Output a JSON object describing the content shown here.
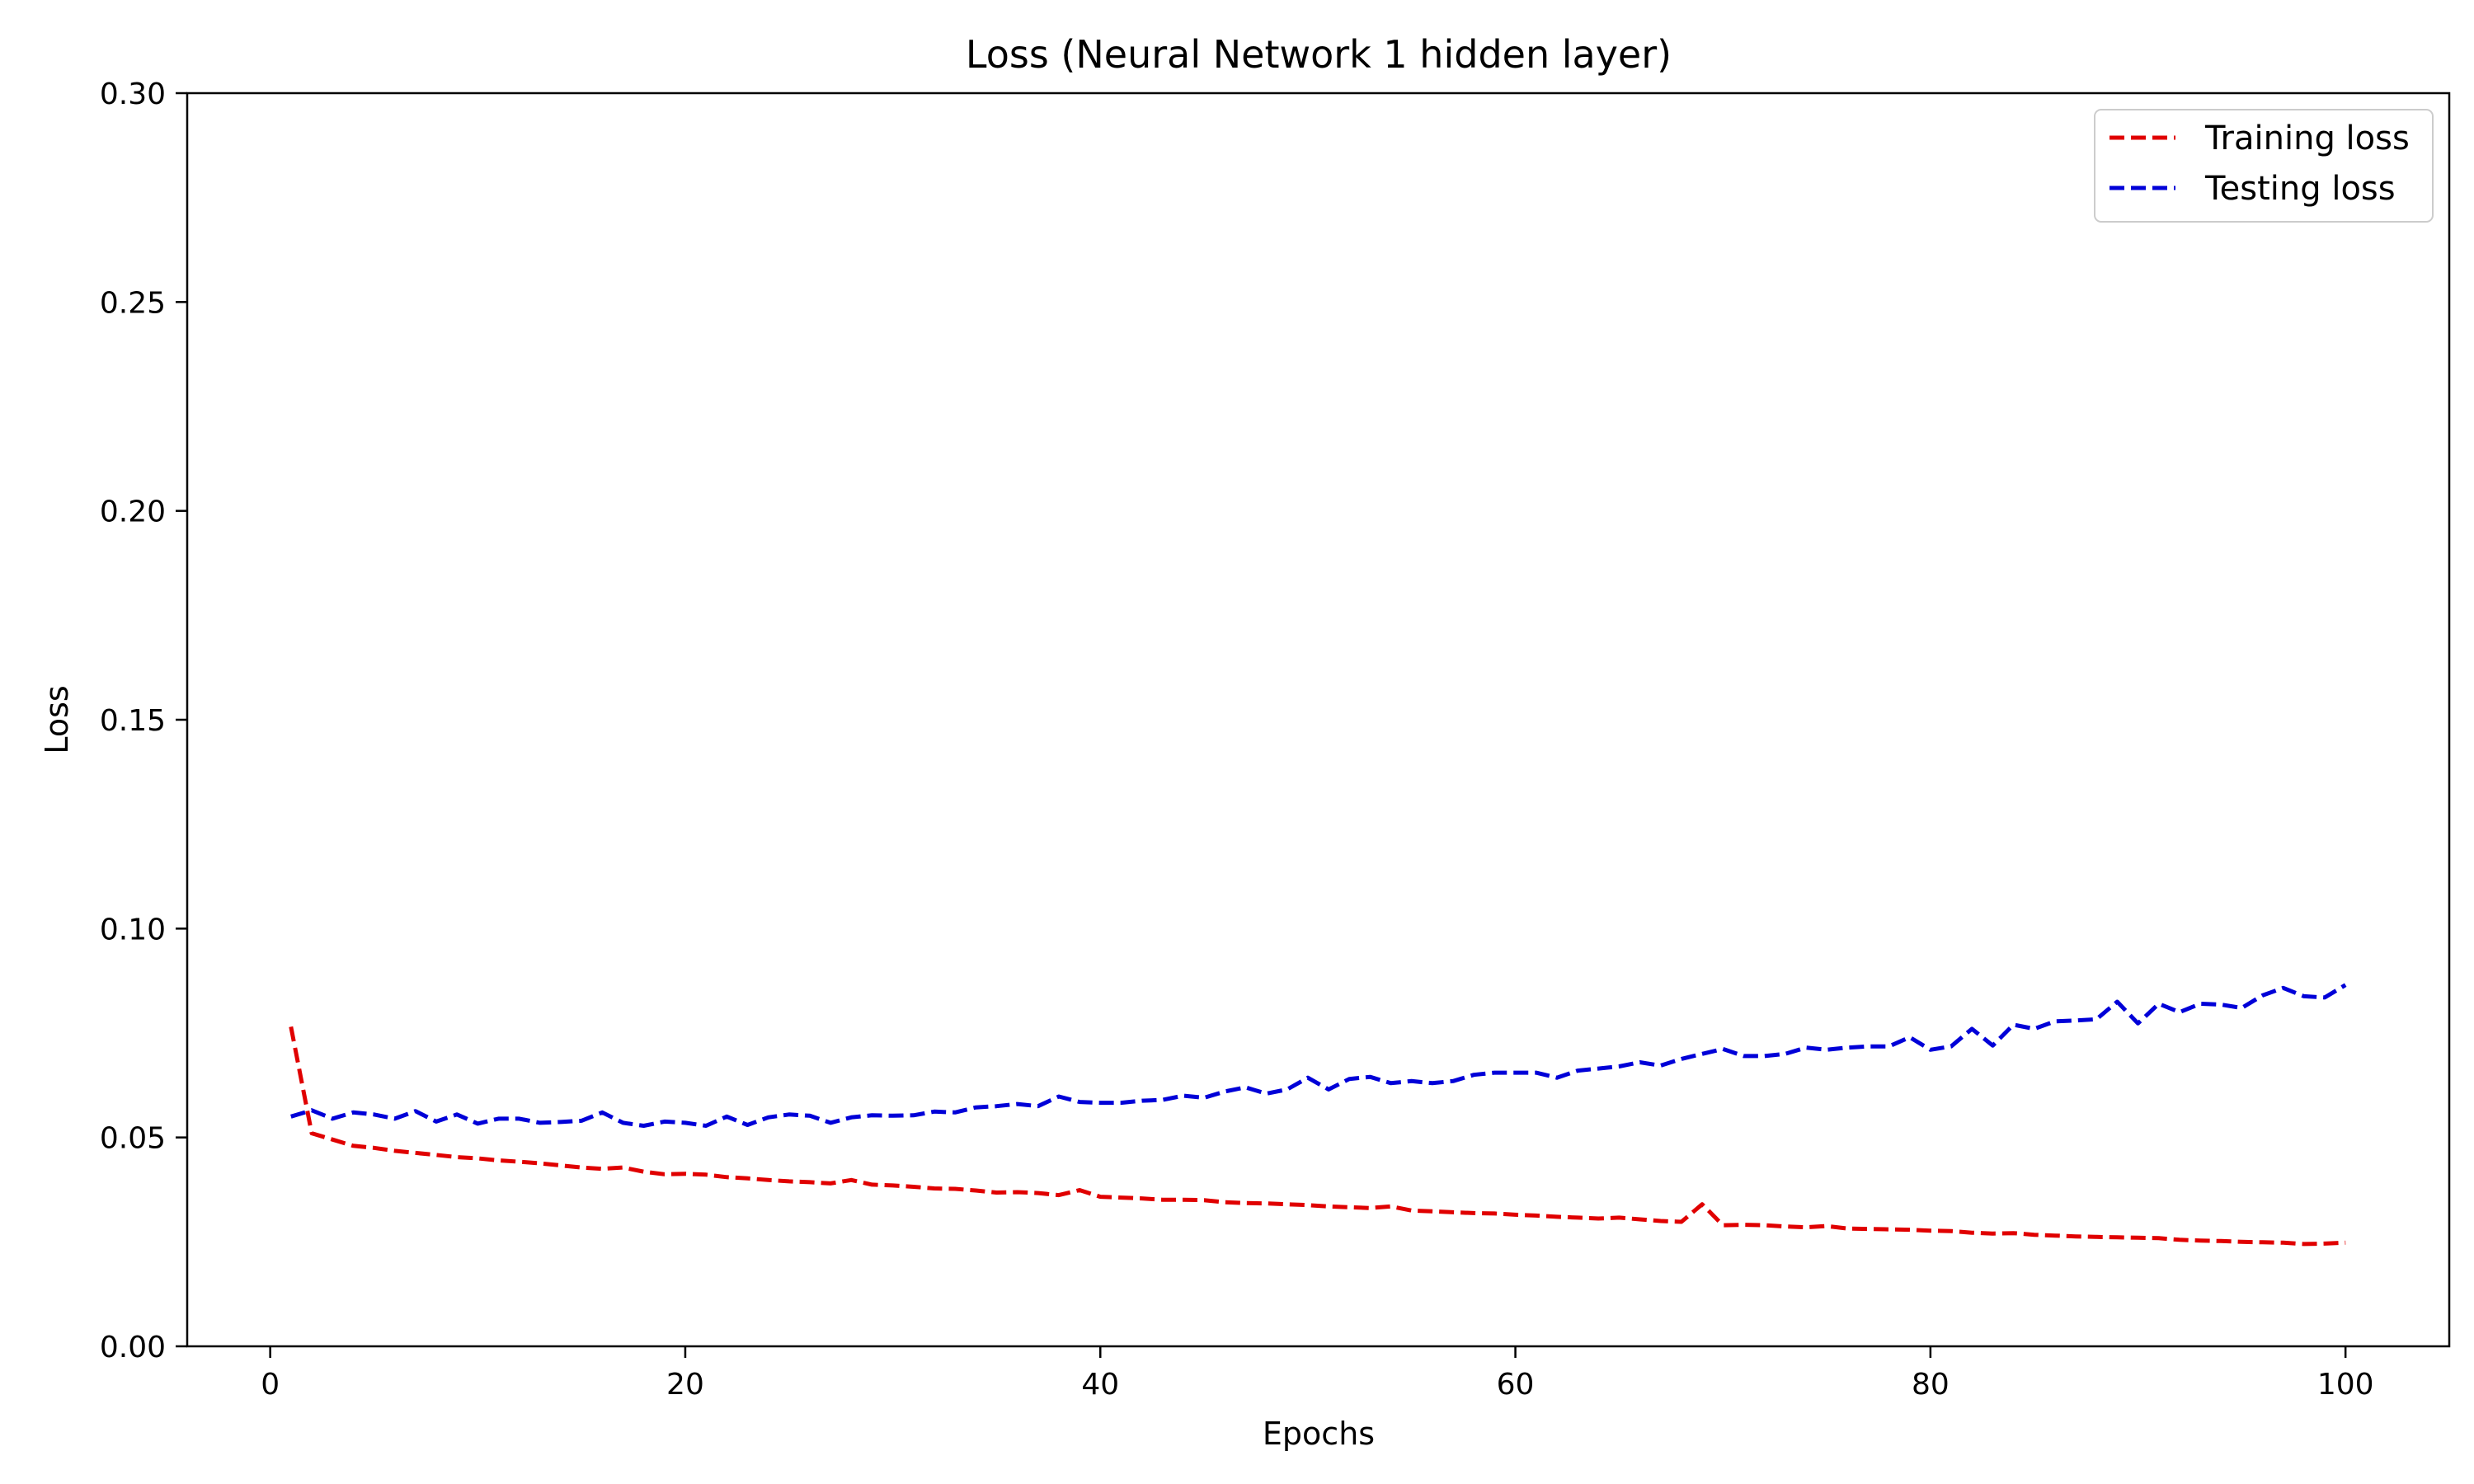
{
  "chart_data": {
    "type": "line",
    "title": "Loss (Neural Network 1 hidden layer)",
    "xlabel": "Epochs",
    "ylabel": "Loss",
    "xlim": [
      -4,
      105
    ],
    "ylim": [
      0,
      0.3
    ],
    "xticks": [
      0,
      20,
      40,
      60,
      80,
      100
    ],
    "yticks": [
      0.0,
      0.05,
      0.1,
      0.15,
      0.2,
      0.25,
      0.3
    ],
    "xtick_labels": [
      "0",
      "20",
      "40",
      "60",
      "80",
      "100"
    ],
    "ytick_labels": [
      "0.00",
      "0.05",
      "0.10",
      "0.15",
      "0.20",
      "0.25",
      "0.30"
    ],
    "grid": false,
    "legend_position": "top-right",
    "series": [
      {
        "name": "Training loss",
        "color": "#e00000",
        "dash": "dashed",
        "x": [
          1,
          2,
          3,
          4,
          5,
          6,
          7,
          8,
          9,
          10,
          11,
          12,
          13,
          14,
          15,
          16,
          17,
          18,
          19,
          20,
          21,
          22,
          23,
          24,
          25,
          26,
          27,
          28,
          29,
          30,
          31,
          32,
          33,
          34,
          35,
          36,
          37,
          38,
          39,
          40,
          41,
          42,
          43,
          44,
          45,
          46,
          47,
          48,
          49,
          50,
          51,
          52,
          53,
          54,
          55,
          56,
          57,
          58,
          59,
          60,
          61,
          62,
          63,
          64,
          65,
          66,
          67,
          68,
          69,
          70,
          71,
          72,
          73,
          74,
          75,
          76,
          77,
          78,
          79,
          80,
          81,
          82,
          83,
          84,
          85,
          86,
          87,
          88,
          89,
          90,
          91,
          92,
          93,
          94,
          95,
          96,
          97,
          98,
          99,
          100
        ],
        "values": [
          0.0765,
          0.051,
          0.0495,
          0.048,
          0.0475,
          0.0468,
          0.0463,
          0.0458,
          0.0453,
          0.045,
          0.0445,
          0.0442,
          0.0438,
          0.0433,
          0.0428,
          0.0425,
          0.0428,
          0.0418,
          0.0412,
          0.0413,
          0.0411,
          0.0405,
          0.0402,
          0.0398,
          0.0395,
          0.0393,
          0.039,
          0.0398,
          0.0387,
          0.0385,
          0.0382,
          0.0378,
          0.0377,
          0.0373,
          0.0368,
          0.0369,
          0.0367,
          0.0362,
          0.0374,
          0.0358,
          0.0356,
          0.0354,
          0.0351,
          0.0351,
          0.035,
          0.0345,
          0.0343,
          0.0342,
          0.034,
          0.0338,
          0.0335,
          0.0333,
          0.0331,
          0.0335,
          0.0325,
          0.0323,
          0.0321,
          0.0319,
          0.0318,
          0.0315,
          0.0313,
          0.031,
          0.0308,
          0.0306,
          0.0308,
          0.0304,
          0.03,
          0.0298,
          0.034,
          0.029,
          0.0291,
          0.029,
          0.0287,
          0.0285,
          0.0288,
          0.0282,
          0.0281,
          0.028,
          0.0279,
          0.0277,
          0.0276,
          0.0272,
          0.027,
          0.0271,
          0.0267,
          0.0265,
          0.0263,
          0.0262,
          0.0261,
          0.026,
          0.0259,
          0.0255,
          0.0253,
          0.0252,
          0.025,
          0.0249,
          0.0248,
          0.0245,
          0.0246,
          0.0248
        ]
      },
      {
        "name": "Testing loss",
        "color": "#0000d8",
        "dash": "dashed",
        "x": [
          1,
          2,
          3,
          4,
          5,
          6,
          7,
          8,
          9,
          10,
          11,
          12,
          13,
          14,
          15,
          16,
          17,
          18,
          19,
          20,
          21,
          22,
          23,
          24,
          25,
          26,
          27,
          28,
          29,
          30,
          31,
          32,
          33,
          34,
          35,
          36,
          37,
          38,
          39,
          40,
          41,
          42,
          43,
          44,
          45,
          46,
          47,
          48,
          49,
          50,
          51,
          52,
          53,
          54,
          55,
          56,
          57,
          58,
          59,
          60,
          61,
          62,
          63,
          64,
          65,
          66,
          67,
          68,
          69,
          70,
          71,
          72,
          73,
          74,
          75,
          76,
          77,
          78,
          79,
          80,
          81,
          82,
          83,
          84,
          85,
          86,
          87,
          88,
          89,
          90,
          91,
          92,
          93,
          94,
          95,
          96,
          97,
          98,
          99,
          100
        ],
        "values": [
          0.055,
          0.0565,
          0.0545,
          0.056,
          0.0555,
          0.0545,
          0.0563,
          0.0538,
          0.0555,
          0.0533,
          0.0545,
          0.0545,
          0.0535,
          0.0537,
          0.054,
          0.056,
          0.0535,
          0.0528,
          0.0538,
          0.0535,
          0.0528,
          0.055,
          0.053,
          0.0548,
          0.0555,
          0.0552,
          0.0535,
          0.0548,
          0.0553,
          0.0552,
          0.0553,
          0.0562,
          0.056,
          0.0572,
          0.0575,
          0.058,
          0.0575,
          0.0598,
          0.0585,
          0.0583,
          0.0583,
          0.0588,
          0.059,
          0.06,
          0.0595,
          0.061,
          0.062,
          0.0605,
          0.0615,
          0.0643,
          0.0615,
          0.064,
          0.0645,
          0.063,
          0.0635,
          0.063,
          0.0635,
          0.065,
          0.0655,
          0.0655,
          0.0655,
          0.0643,
          0.066,
          0.0665,
          0.067,
          0.068,
          0.0672,
          0.0688,
          0.07,
          0.0712,
          0.0695,
          0.0695,
          0.07,
          0.0715,
          0.071,
          0.0715,
          0.0718,
          0.0718,
          0.074,
          0.071,
          0.0718,
          0.076,
          0.072,
          0.077,
          0.076,
          0.0778,
          0.078,
          0.0783,
          0.0825,
          0.0773,
          0.082,
          0.08,
          0.082,
          0.0818,
          0.081,
          0.084,
          0.0858,
          0.0838,
          0.0835,
          0.0865
        ]
      }
    ]
  }
}
